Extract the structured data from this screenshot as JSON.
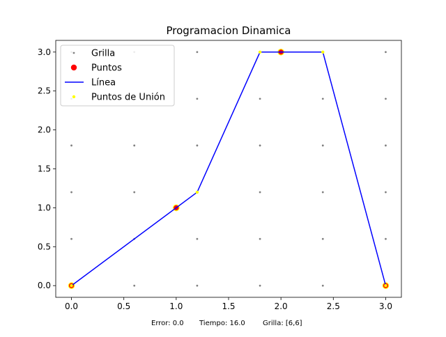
{
  "chart_data": {
    "type": "line",
    "title": "Programacion Dinamica",
    "xlabel": "",
    "ylabel": "",
    "xlim": [
      -0.15,
      3.15
    ],
    "ylim": [
      -0.15,
      3.15
    ],
    "xticks": [
      "0.0",
      "0.5",
      "1.0",
      "1.5",
      "2.0",
      "2.5",
      "3.0"
    ],
    "yticks": [
      "0.0",
      "0.5",
      "1.0",
      "1.5",
      "2.0",
      "2.5",
      "3.0"
    ],
    "grid_lines": false,
    "legend_position": "top-left",
    "series": [
      {
        "name": "Grilla",
        "kind": "scatter",
        "color": "#808080",
        "x_values": [
          0,
          0.6,
          1.2,
          1.8,
          2.4,
          3.0
        ],
        "y_values": [
          0,
          0.6,
          1.2,
          1.8,
          2.4,
          3.0
        ]
      },
      {
        "name": "Puntos",
        "kind": "scatter",
        "color": "#ff0000",
        "x": [
          0,
          1,
          2,
          3
        ],
        "y": [
          0,
          1,
          3,
          0
        ]
      },
      {
        "name": "Línea",
        "kind": "line",
        "color": "#0000ff",
        "x": [
          0,
          1.2,
          1.8,
          2.4,
          3.0
        ],
        "y": [
          0,
          1.2,
          3.0,
          3.0,
          0
        ]
      },
      {
        "name": "Puntos de Unión",
        "kind": "scatter",
        "color": "#ffff00",
        "x": [
          0,
          1.2,
          1.8,
          2.4,
          3.0
        ],
        "y": [
          0,
          1.2,
          3.0,
          3.0,
          0
        ]
      }
    ],
    "footer": {
      "error": "Error: 0.0",
      "time": "Tiempo: 16.0",
      "grid": "Grilla: [6,6]"
    }
  }
}
